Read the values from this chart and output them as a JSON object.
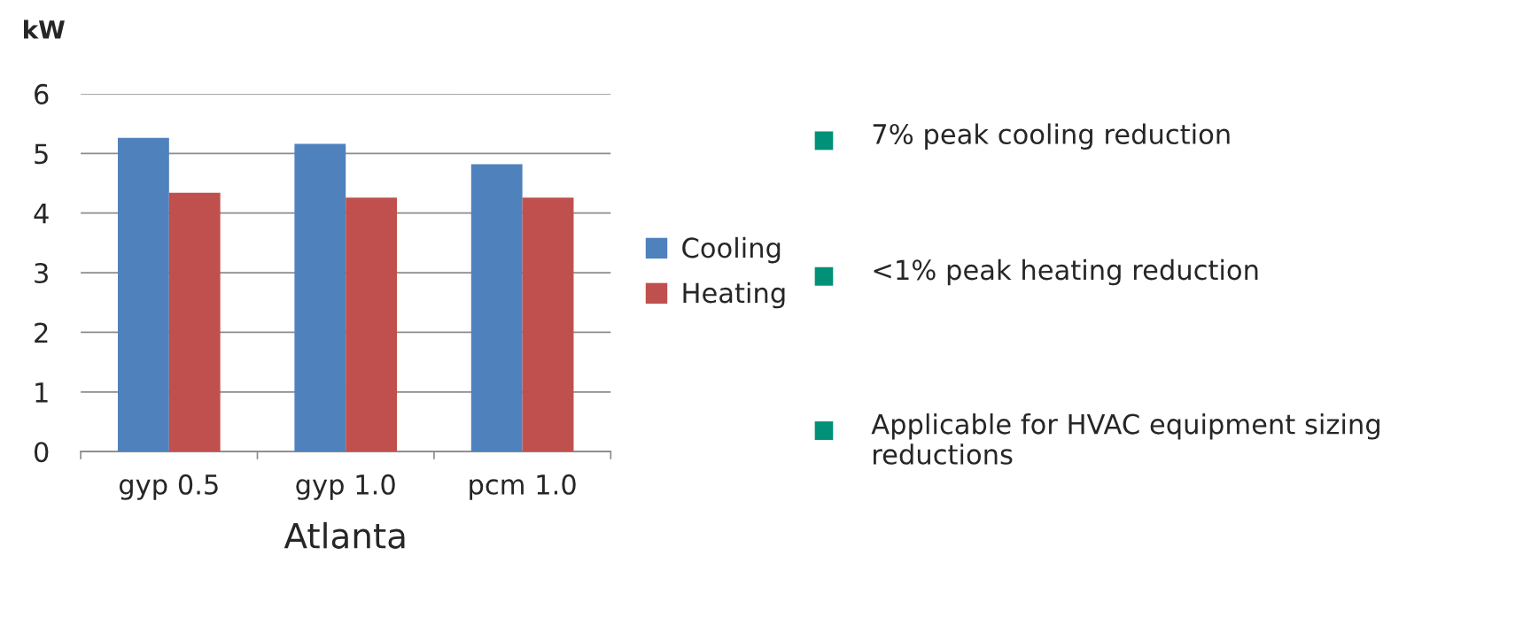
{
  "chart_data": {
    "type": "bar",
    "ylabel": "kW",
    "xlabel": "Atlanta",
    "categories": [
      "gyp 0.5",
      "gyp 1.0",
      "pcm 1.0"
    ],
    "series": [
      {
        "name": "Cooling",
        "color": "#4f81bd",
        "values": [
          5.26,
          5.16,
          4.82
        ]
      },
      {
        "name": "Heating",
        "color": "#c0504d",
        "values": [
          4.34,
          4.26,
          4.26
        ]
      }
    ],
    "ylim": [
      0,
      6
    ],
    "yticks": [
      0,
      1,
      2,
      3,
      4,
      5,
      6
    ],
    "grid": "y",
    "legend": "right",
    "annotations": [
      "7% peak cooling reduction",
      "<1% peak heating reduction",
      "Applicable for HVAC equipment sizing reductions"
    ]
  }
}
